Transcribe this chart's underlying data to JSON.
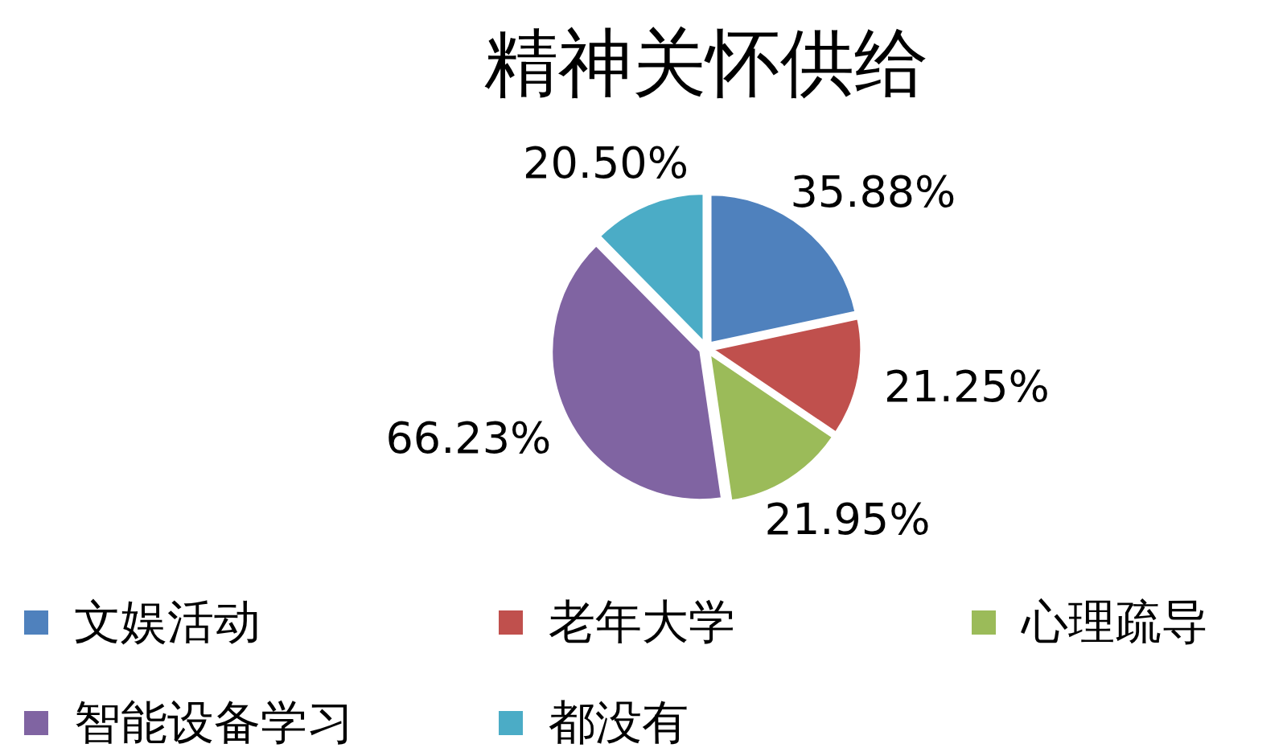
{
  "chart_data": {
    "type": "pie",
    "title": "精神关怀供给",
    "categories": [
      "文娱活动",
      "老年大学",
      "心理疏导",
      "智能设备学习",
      "都没有"
    ],
    "values": [
      35.88,
      21.25,
      21.95,
      66.23,
      20.5
    ],
    "value_labels": [
      "35.88%",
      "21.25%",
      "21.95%",
      "66.23%",
      "20.50%"
    ],
    "colors": [
      "#4f81bd",
      "#c0504d",
      "#9bbb59",
      "#8064a2",
      "#4bacc6"
    ],
    "legend": "bottom"
  }
}
